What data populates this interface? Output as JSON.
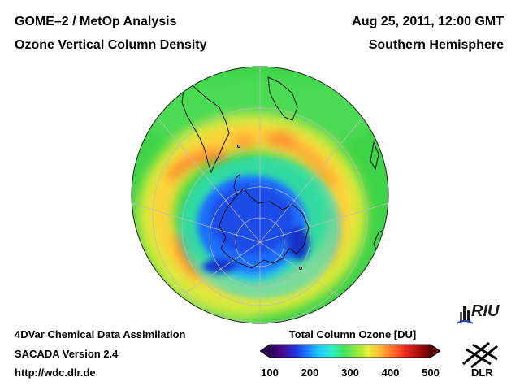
{
  "header": {
    "title_left_1": "GOME–2 / MetOp Analysis",
    "title_left_2": "Ozone Vertical Column Density",
    "title_right_1": "Aug 25, 2011, 12:00 GMT",
    "title_right_2": "Southern Hemisphere"
  },
  "footer": {
    "line_1": "4DVar Chemical Data Assimilation",
    "line_2": "SACADA Version 2.4",
    "line_3": "http://wdc.dlr.de"
  },
  "colorbar": {
    "title": "Total Column Ozone [DU]",
    "ticks": [
      "100",
      "200",
      "300",
      "400",
      "500"
    ],
    "min": 100,
    "max": 500,
    "colors": [
      "#2a0050",
      "#4b0a8a",
      "#2030d8",
      "#1a78ff",
      "#20c8ff",
      "#2aeec8",
      "#40e060",
      "#8ee83a",
      "#e8ee3a",
      "#ffb030",
      "#ff6a2a",
      "#ee2424",
      "#b01010",
      "#600000"
    ]
  },
  "map": {
    "projection": "orthographic",
    "hemisphere": "south",
    "ozone_hole_min_du": 180,
    "collar_max_du": 380,
    "background_du": 300
  },
  "logos": {
    "riu": "RIU",
    "dlr": "DLR"
  }
}
